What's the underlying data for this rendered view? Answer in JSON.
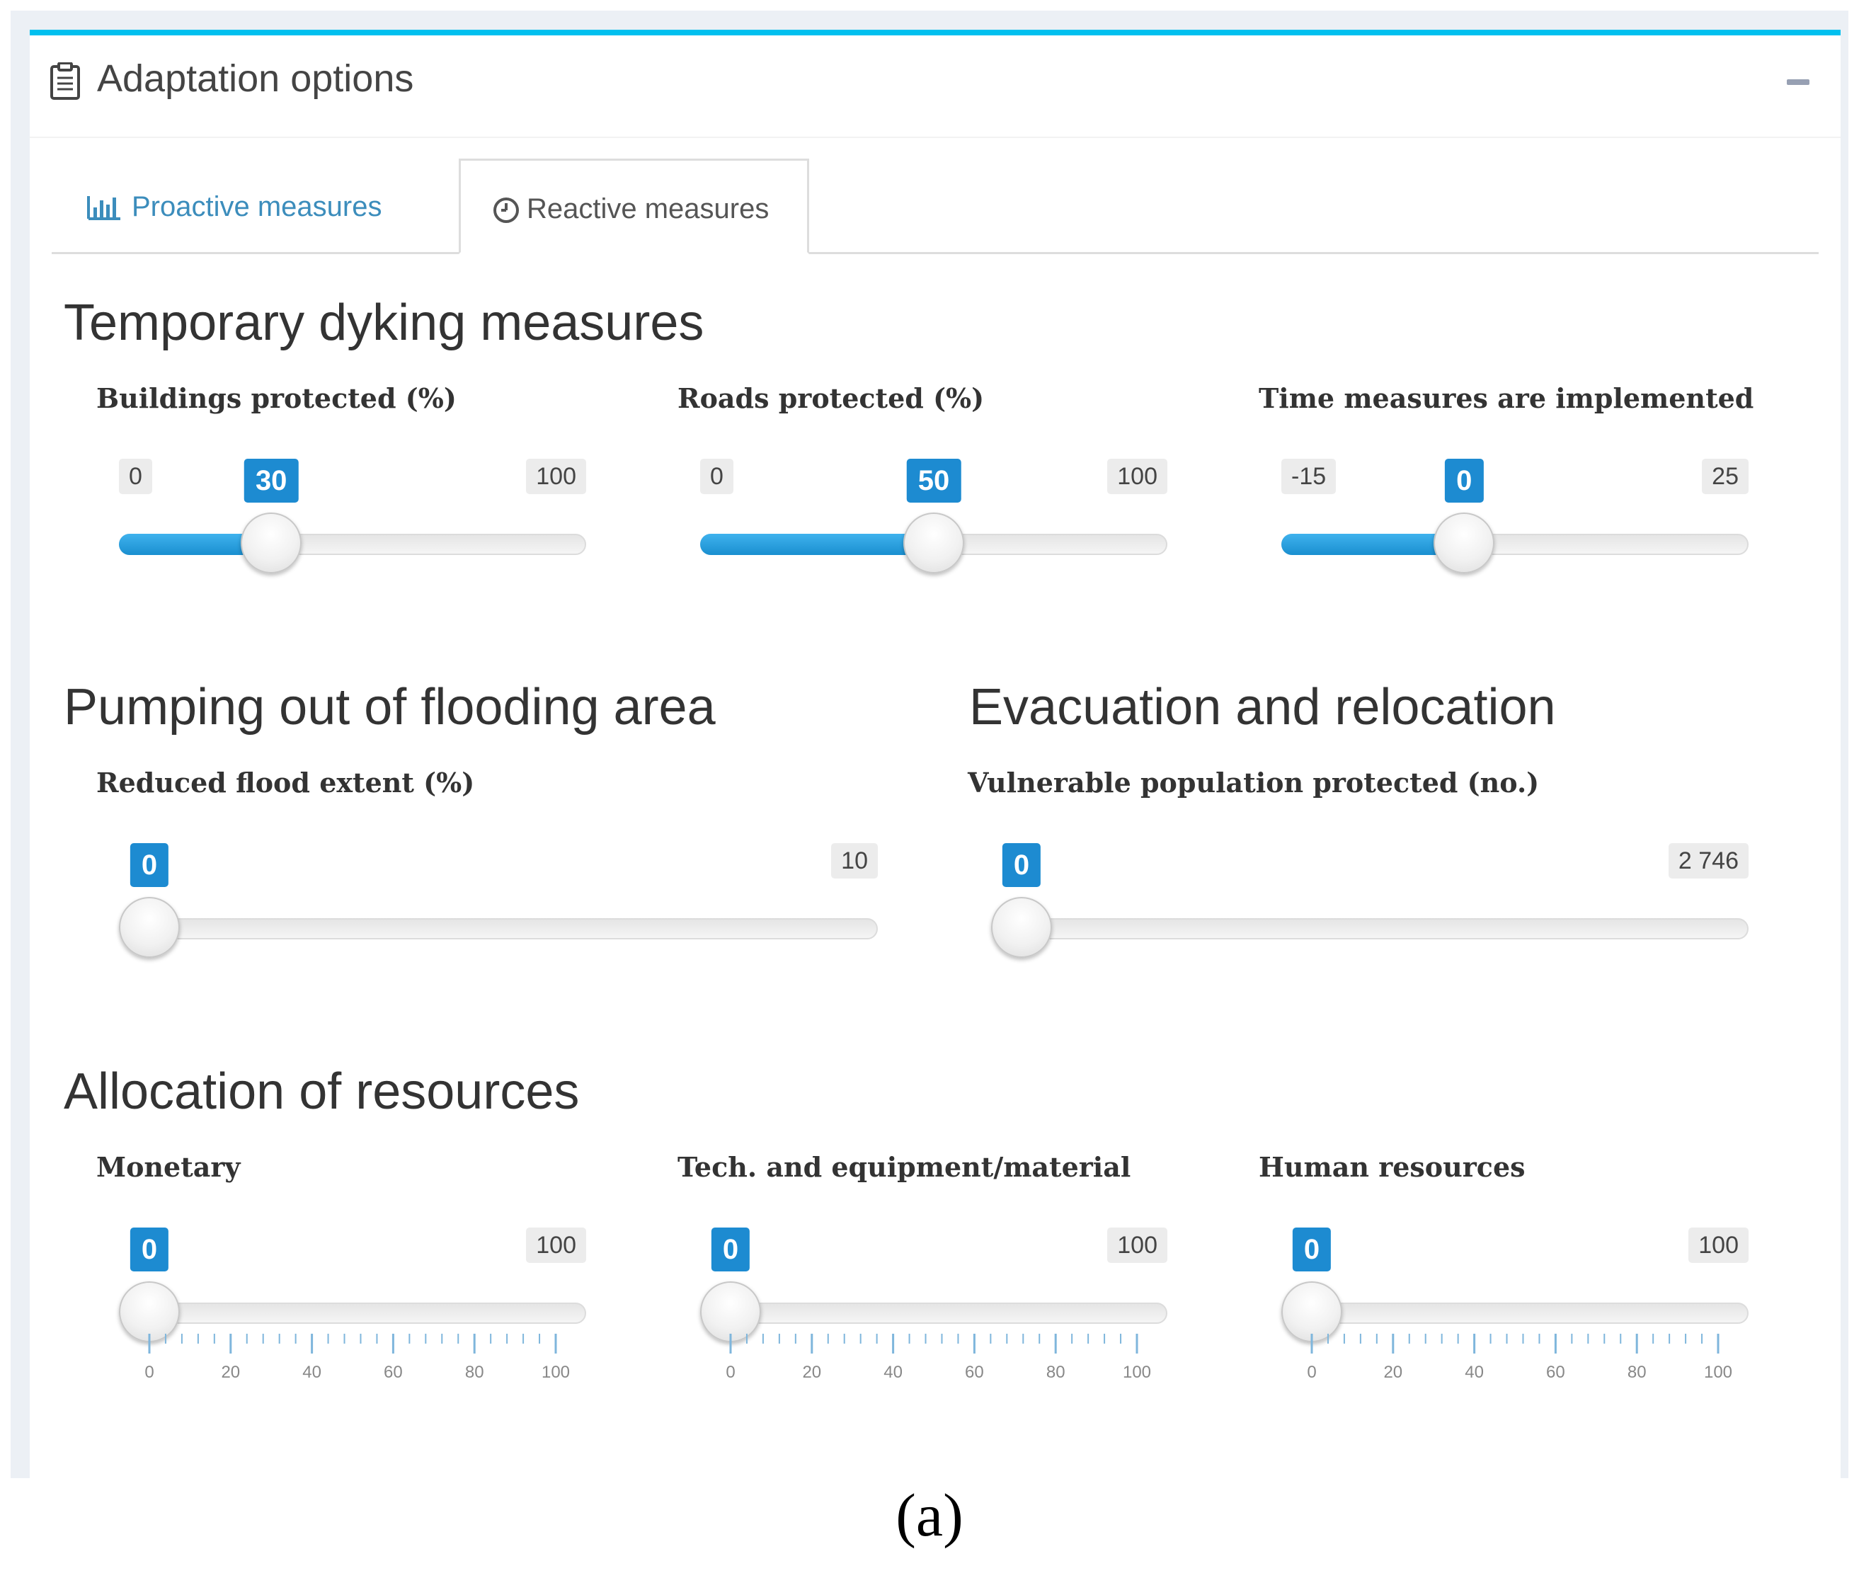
{
  "panel": {
    "title": "Adaptation options",
    "header_icon": "clipboard-icon",
    "collapse_icon": "minus-icon"
  },
  "tabs": [
    {
      "label": "Proactive measures",
      "icon": "bar-chart-icon",
      "active": false
    },
    {
      "label": "Reactive measures",
      "icon": "clock-icon",
      "active": true
    }
  ],
  "sections": {
    "temporary_dyking": {
      "title": "Temporary dyking measures",
      "sliders": {
        "buildings": {
          "label": "Buildings protected (%)",
          "min": "0",
          "max": "100",
          "value": "30",
          "fraction": 0.3
        },
        "roads": {
          "label": "Roads protected (%)",
          "min": "0",
          "max": "100",
          "value": "50",
          "fraction": 0.5
        },
        "time": {
          "label": "Time measures are implemented",
          "min": "-15",
          "max": "25",
          "value": "0",
          "fraction": 0.375
        }
      }
    },
    "pumping": {
      "title": "Pumping out of flooding area",
      "sliders": {
        "reduced_extent": {
          "label": "Reduced flood extent (%)",
          "max": "10",
          "value": "0",
          "fraction": 0
        }
      }
    },
    "evacuation": {
      "title": "Evacuation and relocation",
      "sliders": {
        "vulnerable_population": {
          "label": "Vulnerable population protected (no.)",
          "max": "2 746",
          "value": "0",
          "fraction": 0
        }
      }
    },
    "allocation": {
      "title": "Allocation of resources",
      "sliders": {
        "monetary": {
          "label": "Monetary",
          "max": "100",
          "value": "0",
          "fraction": 0
        },
        "tech": {
          "label": "Tech. and equipment/material",
          "max": "100",
          "value": "0",
          "fraction": 0
        },
        "human": {
          "label": "Human resources",
          "max": "100",
          "value": "0",
          "fraction": 0
        }
      },
      "grid_labels": [
        "0",
        "20",
        "40",
        "60",
        "80",
        "100"
      ]
    }
  },
  "caption": "(a)",
  "colors": {
    "accent_top_border": "#00c0ef",
    "slider_fill": "#1d8bd1",
    "link_tab": "#3c8dbc"
  }
}
